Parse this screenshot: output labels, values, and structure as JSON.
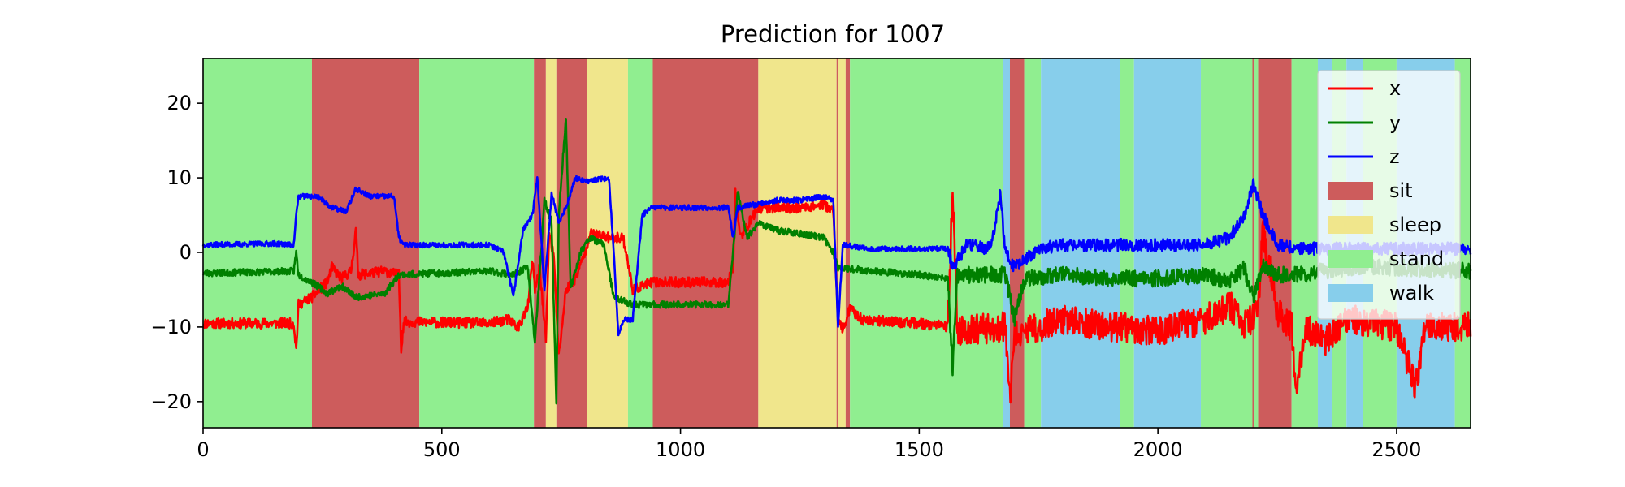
{
  "chart_data": {
    "type": "line",
    "title": "Prediction for 1007",
    "xlabel": "",
    "ylabel": "",
    "xlim": [
      0,
      2655
    ],
    "ylim": [
      -23.5,
      26
    ],
    "xticks": [
      0,
      500,
      1000,
      1500,
      2000,
      2500
    ],
    "yticks": [
      -20,
      -10,
      0,
      10,
      20
    ],
    "ytick_labels": [
      "−20",
      "−10",
      "0",
      "10",
      "20"
    ],
    "grid": false,
    "legend_position": "upper right",
    "classes": [
      {
        "name": "sit",
        "color": "#cd5c5c"
      },
      {
        "name": "sleep",
        "color": "#f0e68c"
      },
      {
        "name": "stand",
        "color": "#90ee90"
      },
      {
        "name": "walk",
        "color": "#87ceeb"
      }
    ],
    "segments": [
      {
        "start": 0,
        "end": 228,
        "label": "stand"
      },
      {
        "start": 228,
        "end": 453,
        "label": "sit"
      },
      {
        "start": 453,
        "end": 693,
        "label": "stand"
      },
      {
        "start": 693,
        "end": 718,
        "label": "sit"
      },
      {
        "start": 718,
        "end": 740,
        "label": "sleep"
      },
      {
        "start": 740,
        "end": 805,
        "label": "sit"
      },
      {
        "start": 805,
        "end": 890,
        "label": "sleep"
      },
      {
        "start": 890,
        "end": 942,
        "label": "stand"
      },
      {
        "start": 942,
        "end": 1163,
        "label": "sit"
      },
      {
        "start": 1163,
        "end": 1327,
        "label": "sleep"
      },
      {
        "start": 1327,
        "end": 1330,
        "label": "sit"
      },
      {
        "start": 1330,
        "end": 1346,
        "label": "sleep"
      },
      {
        "start": 1346,
        "end": 1355,
        "label": "sit"
      },
      {
        "start": 1355,
        "end": 1676,
        "label": "stand"
      },
      {
        "start": 1676,
        "end": 1690,
        "label": "walk"
      },
      {
        "start": 1690,
        "end": 1720,
        "label": "sit"
      },
      {
        "start": 1720,
        "end": 1755,
        "label": "stand"
      },
      {
        "start": 1755,
        "end": 1920,
        "label": "walk"
      },
      {
        "start": 1920,
        "end": 1950,
        "label": "stand"
      },
      {
        "start": 1950,
        "end": 2090,
        "label": "walk"
      },
      {
        "start": 2090,
        "end": 2198,
        "label": "stand"
      },
      {
        "start": 2198,
        "end": 2202,
        "label": "sit"
      },
      {
        "start": 2202,
        "end": 2210,
        "label": "stand"
      },
      {
        "start": 2210,
        "end": 2280,
        "label": "sit"
      },
      {
        "start": 2280,
        "end": 2335,
        "label": "stand"
      },
      {
        "start": 2335,
        "end": 2365,
        "label": "walk"
      },
      {
        "start": 2365,
        "end": 2395,
        "label": "stand"
      },
      {
        "start": 2395,
        "end": 2430,
        "label": "walk"
      },
      {
        "start": 2430,
        "end": 2500,
        "label": "stand"
      },
      {
        "start": 2500,
        "end": 2622,
        "label": "walk"
      },
      {
        "start": 2622,
        "end": 2655,
        "label": "stand"
      }
    ],
    "series": [
      {
        "name": "x",
        "color": "#ff0000",
        "noise": 0.7,
        "noise_regions": [
          [
            1560,
            2655,
            2.0
          ]
        ],
        "points": [
          [
            0,
            -9.5
          ],
          [
            190,
            -9.5
          ],
          [
            195,
            -13
          ],
          [
            200,
            -7
          ],
          [
            228,
            -6
          ],
          [
            260,
            -4
          ],
          [
            270,
            -2
          ],
          [
            290,
            -3.5
          ],
          [
            310,
            -2.5
          ],
          [
            320,
            3
          ],
          [
            325,
            -3
          ],
          [
            380,
            -2.5
          ],
          [
            410,
            -3
          ],
          [
            415,
            -13
          ],
          [
            420,
            -9.3
          ],
          [
            600,
            -9.5
          ],
          [
            640,
            -9
          ],
          [
            660,
            -10
          ],
          [
            680,
            -7.5
          ],
          [
            690,
            -1
          ],
          [
            695,
            -5
          ],
          [
            705,
            -2
          ],
          [
            718,
            -12
          ],
          [
            725,
            3
          ],
          [
            735,
            -1
          ],
          [
            745,
            -14
          ],
          [
            760,
            -5
          ],
          [
            780,
            -3.5
          ],
          [
            800,
            0
          ],
          [
            810,
            2.5
          ],
          [
            850,
            2
          ],
          [
            880,
            2
          ],
          [
            900,
            -5
          ],
          [
            940,
            -4
          ],
          [
            1000,
            -4
          ],
          [
            1100,
            -4
          ],
          [
            1110,
            -2
          ],
          [
            1115,
            8
          ],
          [
            1125,
            2
          ],
          [
            1163,
            6
          ],
          [
            1250,
            6
          ],
          [
            1300,
            6.5
          ],
          [
            1320,
            5.5
          ],
          [
            1330,
            -9
          ],
          [
            1340,
            -10.5
          ],
          [
            1355,
            -7.5
          ],
          [
            1380,
            -9
          ],
          [
            1500,
            -9.5
          ],
          [
            1560,
            -10
          ],
          [
            1570,
            8
          ],
          [
            1580,
            -10.5
          ],
          [
            1680,
            -10
          ],
          [
            1690,
            -20
          ],
          [
            1700,
            -11
          ],
          [
            1800,
            -9
          ],
          [
            1900,
            -10
          ],
          [
            2000,
            -10.5
          ],
          [
            2100,
            -9
          ],
          [
            2150,
            -7
          ],
          [
            2180,
            -10
          ],
          [
            2210,
            -8
          ],
          [
            2220,
            3
          ],
          [
            2250,
            -8
          ],
          [
            2280,
            -10
          ],
          [
            2290,
            -18
          ],
          [
            2310,
            -10
          ],
          [
            2350,
            -12
          ],
          [
            2400,
            -9
          ],
          [
            2500,
            -10
          ],
          [
            2540,
            -18
          ],
          [
            2560,
            -10
          ],
          [
            2655,
            -10
          ]
        ]
      },
      {
        "name": "y",
        "color": "#008000",
        "noise": 0.45,
        "noise_regions": [
          [
            1560,
            2655,
            1.1
          ]
        ],
        "points": [
          [
            0,
            -2.8
          ],
          [
            190,
            -2.5
          ],
          [
            195,
            0
          ],
          [
            200,
            -3
          ],
          [
            240,
            -4.5
          ],
          [
            260,
            -5.5
          ],
          [
            290,
            -4.5
          ],
          [
            320,
            -6
          ],
          [
            380,
            -5.5
          ],
          [
            410,
            -3
          ],
          [
            600,
            -2.5
          ],
          [
            650,
            -3
          ],
          [
            680,
            -2
          ],
          [
            695,
            -12
          ],
          [
            705,
            -3
          ],
          [
            715,
            7
          ],
          [
            730,
            4
          ],
          [
            740,
            -20
          ],
          [
            745,
            5
          ],
          [
            760,
            18
          ],
          [
            770,
            -5
          ],
          [
            790,
            0
          ],
          [
            810,
            2
          ],
          [
            840,
            1
          ],
          [
            860,
            -6
          ],
          [
            900,
            -7
          ],
          [
            1000,
            -7
          ],
          [
            1100,
            -7
          ],
          [
            1110,
            0
          ],
          [
            1120,
            8
          ],
          [
            1140,
            2
          ],
          [
            1163,
            4
          ],
          [
            1200,
            3
          ],
          [
            1250,
            2.5
          ],
          [
            1300,
            2
          ],
          [
            1320,
            0
          ],
          [
            1330,
            -2
          ],
          [
            1400,
            -2.5
          ],
          [
            1500,
            -3
          ],
          [
            1560,
            -3.5
          ],
          [
            1570,
            -16
          ],
          [
            1580,
            -3
          ],
          [
            1680,
            -3
          ],
          [
            1700,
            -9
          ],
          [
            1720,
            -3.5
          ],
          [
            1800,
            -3
          ],
          [
            1900,
            -3.5
          ],
          [
            2000,
            -3.5
          ],
          [
            2100,
            -3
          ],
          [
            2150,
            -4
          ],
          [
            2180,
            -2
          ],
          [
            2200,
            -6
          ],
          [
            2220,
            -2
          ],
          [
            2250,
            -3
          ],
          [
            2300,
            -3
          ],
          [
            2400,
            -2
          ],
          [
            2500,
            -2
          ],
          [
            2655,
            -2.5
          ]
        ]
      },
      {
        "name": "z",
        "color": "#0000ff",
        "noise": 0.35,
        "noise_regions": [
          [
            1560,
            2655,
            0.85
          ]
        ],
        "points": [
          [
            0,
            1
          ],
          [
            150,
            1.2
          ],
          [
            190,
            1
          ],
          [
            195,
            5
          ],
          [
            200,
            7.5
          ],
          [
            240,
            7.5
          ],
          [
            270,
            6
          ],
          [
            300,
            5.5
          ],
          [
            320,
            8.5
          ],
          [
            350,
            7.5
          ],
          [
            400,
            7.5
          ],
          [
            410,
            2
          ],
          [
            420,
            1
          ],
          [
            600,
            1
          ],
          [
            630,
            0
          ],
          [
            650,
            -6
          ],
          [
            670,
            3
          ],
          [
            690,
            5
          ],
          [
            700,
            10
          ],
          [
            715,
            -5
          ],
          [
            730,
            8
          ],
          [
            745,
            4
          ],
          [
            760,
            6
          ],
          [
            780,
            10
          ],
          [
            800,
            9.5
          ],
          [
            850,
            10
          ],
          [
            860,
            0
          ],
          [
            870,
            -11
          ],
          [
            880,
            -9
          ],
          [
            900,
            -9
          ],
          [
            920,
            5
          ],
          [
            940,
            6
          ],
          [
            1000,
            6
          ],
          [
            1100,
            6
          ],
          [
            1110,
            2
          ],
          [
            1120,
            6
          ],
          [
            1163,
            6.5
          ],
          [
            1200,
            7
          ],
          [
            1250,
            7
          ],
          [
            1300,
            7.5
          ],
          [
            1320,
            7
          ],
          [
            1330,
            -10
          ],
          [
            1340,
            1
          ],
          [
            1400,
            0.5
          ],
          [
            1500,
            0.5
          ],
          [
            1560,
            0.5
          ],
          [
            1570,
            -2
          ],
          [
            1600,
            1
          ],
          [
            1650,
            0.5
          ],
          [
            1670,
            8
          ],
          [
            1680,
            0
          ],
          [
            1700,
            -2
          ],
          [
            1750,
            0.5
          ],
          [
            1800,
            1
          ],
          [
            1900,
            1
          ],
          [
            2000,
            1
          ],
          [
            2100,
            1
          ],
          [
            2150,
            2
          ],
          [
            2180,
            5
          ],
          [
            2200,
            9
          ],
          [
            2220,
            5
          ],
          [
            2250,
            1
          ],
          [
            2300,
            0.5
          ],
          [
            2400,
            0.5
          ],
          [
            2500,
            0.5
          ],
          [
            2655,
            0.5
          ]
        ]
      }
    ]
  }
}
